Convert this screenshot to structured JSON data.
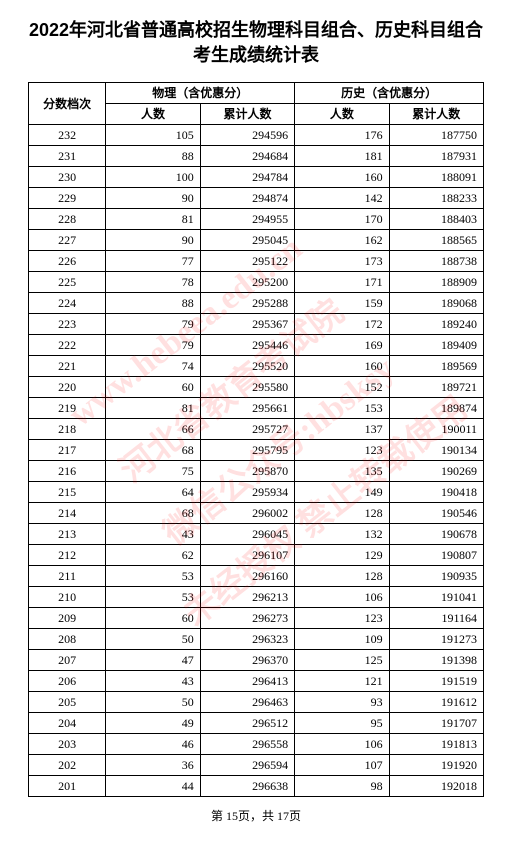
{
  "title_line1": "2022年河北省普通高校招生物理科目组合、历史科目组合",
  "title_line2": "考生成绩统计表",
  "headers": {
    "score": "分数档次",
    "physics": "物理（含优惠分）",
    "history": "历史（含优惠分）",
    "count": "人数",
    "cumulative": "累计人数"
  },
  "footer": "第 15页，共 17页",
  "watermark": {
    "lines": [
      "www.hebeea.edu.cn",
      "河北省教育考试院",
      "微信公众号:hbsksy",
      "未经授权 禁止转载使用"
    ]
  },
  "rows": [
    {
      "score": "232",
      "pc": "105",
      "pcc": "294596",
      "hc": "176",
      "hcc": "187750"
    },
    {
      "score": "231",
      "pc": "88",
      "pcc": "294684",
      "hc": "181",
      "hcc": "187931"
    },
    {
      "score": "230",
      "pc": "100",
      "pcc": "294784",
      "hc": "160",
      "hcc": "188091"
    },
    {
      "score": "229",
      "pc": "90",
      "pcc": "294874",
      "hc": "142",
      "hcc": "188233"
    },
    {
      "score": "228",
      "pc": "81",
      "pcc": "294955",
      "hc": "170",
      "hcc": "188403"
    },
    {
      "score": "227",
      "pc": "90",
      "pcc": "295045",
      "hc": "162",
      "hcc": "188565"
    },
    {
      "score": "226",
      "pc": "77",
      "pcc": "295122",
      "hc": "173",
      "hcc": "188738"
    },
    {
      "score": "225",
      "pc": "78",
      "pcc": "295200",
      "hc": "171",
      "hcc": "188909"
    },
    {
      "score": "224",
      "pc": "88",
      "pcc": "295288",
      "hc": "159",
      "hcc": "189068"
    },
    {
      "score": "223",
      "pc": "79",
      "pcc": "295367",
      "hc": "172",
      "hcc": "189240"
    },
    {
      "score": "222",
      "pc": "79",
      "pcc": "295446",
      "hc": "169",
      "hcc": "189409"
    },
    {
      "score": "221",
      "pc": "74",
      "pcc": "295520",
      "hc": "160",
      "hcc": "189569"
    },
    {
      "score": "220",
      "pc": "60",
      "pcc": "295580",
      "hc": "152",
      "hcc": "189721"
    },
    {
      "score": "219",
      "pc": "81",
      "pcc": "295661",
      "hc": "153",
      "hcc": "189874"
    },
    {
      "score": "218",
      "pc": "66",
      "pcc": "295727",
      "hc": "137",
      "hcc": "190011"
    },
    {
      "score": "217",
      "pc": "68",
      "pcc": "295795",
      "hc": "123",
      "hcc": "190134"
    },
    {
      "score": "216",
      "pc": "75",
      "pcc": "295870",
      "hc": "135",
      "hcc": "190269"
    },
    {
      "score": "215",
      "pc": "64",
      "pcc": "295934",
      "hc": "149",
      "hcc": "190418"
    },
    {
      "score": "214",
      "pc": "68",
      "pcc": "296002",
      "hc": "128",
      "hcc": "190546"
    },
    {
      "score": "213",
      "pc": "43",
      "pcc": "296045",
      "hc": "132",
      "hcc": "190678"
    },
    {
      "score": "212",
      "pc": "62",
      "pcc": "296107",
      "hc": "129",
      "hcc": "190807"
    },
    {
      "score": "211",
      "pc": "53",
      "pcc": "296160",
      "hc": "128",
      "hcc": "190935"
    },
    {
      "score": "210",
      "pc": "53",
      "pcc": "296213",
      "hc": "106",
      "hcc": "191041"
    },
    {
      "score": "209",
      "pc": "60",
      "pcc": "296273",
      "hc": "123",
      "hcc": "191164"
    },
    {
      "score": "208",
      "pc": "50",
      "pcc": "296323",
      "hc": "109",
      "hcc": "191273"
    },
    {
      "score": "207",
      "pc": "47",
      "pcc": "296370",
      "hc": "125",
      "hcc": "191398"
    },
    {
      "score": "206",
      "pc": "43",
      "pcc": "296413",
      "hc": "121",
      "hcc": "191519"
    },
    {
      "score": "205",
      "pc": "50",
      "pcc": "296463",
      "hc": "93",
      "hcc": "191612"
    },
    {
      "score": "204",
      "pc": "49",
      "pcc": "296512",
      "hc": "95",
      "hcc": "191707"
    },
    {
      "score": "203",
      "pc": "46",
      "pcc": "296558",
      "hc": "106",
      "hcc": "191813"
    },
    {
      "score": "202",
      "pc": "36",
      "pcc": "296594",
      "hc": "107",
      "hcc": "191920"
    },
    {
      "score": "201",
      "pc": "44",
      "pcc": "296638",
      "hc": "98",
      "hcc": "192018"
    }
  ]
}
